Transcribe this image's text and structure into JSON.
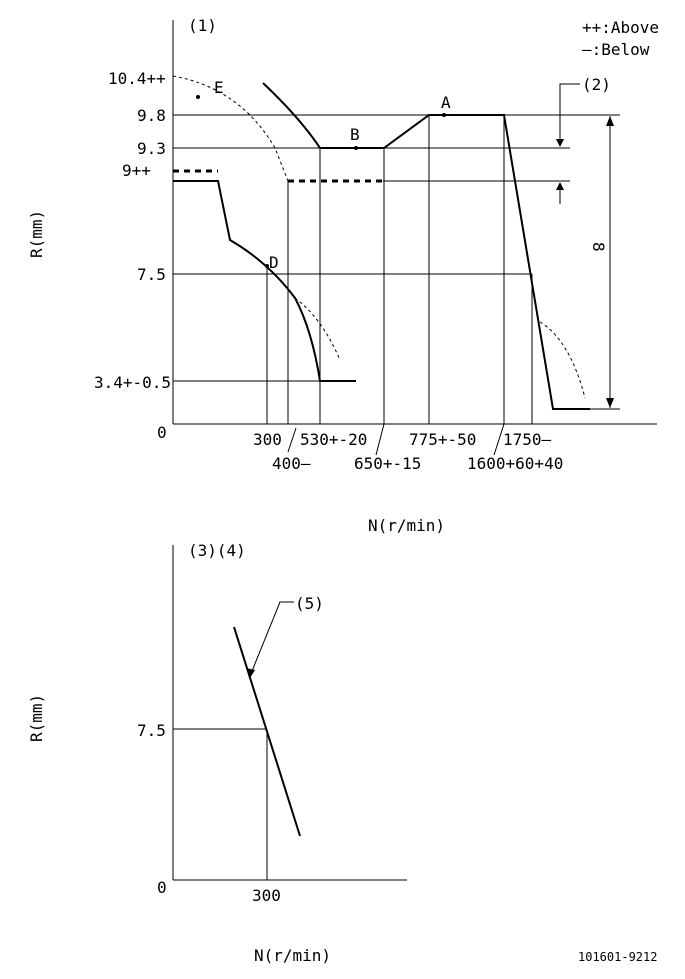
{
  "legend": {
    "above": "++:Above",
    "below": "—:Below"
  },
  "top_chart": {
    "tag": "(1)",
    "ylabel": "R(mm)",
    "xlabel": "N(r/min)",
    "origin": "0",
    "y_ticks": [
      "10.4++",
      "9.8",
      "9.3",
      "9++",
      "7.5",
      "3.4+-0.5"
    ],
    "x_ticks": [
      "300",
      "400—",
      "530+-20",
      "650+-15",
      "775+-50",
      "1600+60+40",
      "1750—"
    ],
    "points": [
      "A",
      "B",
      "D",
      "E"
    ],
    "note_2": "(2)",
    "dimension": "8"
  },
  "bottom_chart": {
    "tags": "(3)(4)",
    "ylabel": "R(mm)",
    "xlabel": "N(r/min)",
    "origin": "0",
    "y_tick": "7.5",
    "x_tick": "300",
    "note_5": "(5)"
  },
  "doc_number": "101601-9212"
}
